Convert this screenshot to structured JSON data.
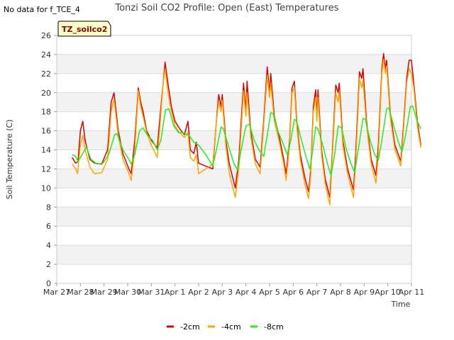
{
  "chart_data": {
    "type": "line",
    "title": "Tonzi Soil CO2 Profile: Open (East) Temperatures",
    "no_data_note": "No data for f_TCE_4",
    "badge": "TZ_soilco2",
    "xlabel": "Time",
    "ylabel": "Soil Temperature (C)",
    "xlim": [
      0,
      15
    ],
    "ylim": [
      0,
      26
    ],
    "x_ticks": [
      0,
      1,
      2,
      3,
      4,
      5,
      6,
      7,
      8,
      9,
      10,
      11,
      12,
      13,
      14,
      15
    ],
    "x_tick_labels": [
      "Mar 27",
      "Mar 28",
      "Mar 29",
      "Mar 30",
      "Mar 31",
      "Apr 1",
      "Apr 2",
      "Apr 3",
      "Apr 4",
      "Apr 5",
      "Apr 6",
      "Apr 7",
      "Apr 8",
      "Apr 9",
      "Apr 10",
      "Apr 11"
    ],
    "y_ticks": [
      0,
      2,
      4,
      6,
      8,
      10,
      12,
      14,
      16,
      18,
      20,
      22,
      24,
      26
    ],
    "grid": "horizontal bands",
    "legend_position": "bottom-center",
    "series": [
      {
        "name": "-2cm",
        "color": "#dd0000",
        "points": [
          [
            0.65,
            13.2
          ],
          [
            0.8,
            12.6
          ],
          [
            0.9,
            12.8
          ],
          [
            1.0,
            16.0
          ],
          [
            1.1,
            17.0
          ],
          [
            1.2,
            15.0
          ],
          [
            1.4,
            13.0
          ],
          [
            1.6,
            12.6
          ],
          [
            1.9,
            12.5
          ],
          [
            2.15,
            14.0
          ],
          [
            2.3,
            19.0
          ],
          [
            2.42,
            20.0
          ],
          [
            2.6,
            16.0
          ],
          [
            2.8,
            13.6
          ],
          [
            3.05,
            12.0
          ],
          [
            3.15,
            11.5
          ],
          [
            3.3,
            15.0
          ],
          [
            3.45,
            20.5
          ],
          [
            3.55,
            19.0
          ],
          [
            3.65,
            18.0
          ],
          [
            3.8,
            16.0
          ],
          [
            4.0,
            15.0
          ],
          [
            4.25,
            14.2
          ],
          [
            4.35,
            17.0
          ],
          [
            4.5,
            21.0
          ],
          [
            4.58,
            23.2
          ],
          [
            4.7,
            21.0
          ],
          [
            4.85,
            18.5
          ],
          [
            5.0,
            17.0
          ],
          [
            5.2,
            16.2
          ],
          [
            5.4,
            15.6
          ],
          [
            5.55,
            17.0
          ],
          [
            5.65,
            14.0
          ],
          [
            5.8,
            13.6
          ],
          [
            5.9,
            14.8
          ],
          [
            6.0,
            12.6
          ],
          [
            6.3,
            12.3
          ],
          [
            6.6,
            12.0
          ],
          [
            6.75,
            17.0
          ],
          [
            6.85,
            19.8
          ],
          [
            6.95,
            18.5
          ],
          [
            7.0,
            19.8
          ],
          [
            7.15,
            15.0
          ],
          [
            7.3,
            12.5
          ],
          [
            7.55,
            10.0
          ],
          [
            7.7,
            13.0
          ],
          [
            7.9,
            21.0
          ],
          [
            8.0,
            18.0
          ],
          [
            8.05,
            21.2
          ],
          [
            8.2,
            16.0
          ],
          [
            8.4,
            13.0
          ],
          [
            8.6,
            12.2
          ],
          [
            8.75,
            17.0
          ],
          [
            8.9,
            22.7
          ],
          [
            9.0,
            20.0
          ],
          [
            9.05,
            22.0
          ],
          [
            9.2,
            17.5
          ],
          [
            9.4,
            15.5
          ],
          [
            9.6,
            13.0
          ],
          [
            9.7,
            11.5
          ],
          [
            9.85,
            15.0
          ],
          [
            9.95,
            20.5
          ],
          [
            10.05,
            21.2
          ],
          [
            10.15,
            17.0
          ],
          [
            10.3,
            13.5
          ],
          [
            10.5,
            11.0
          ],
          [
            10.65,
            9.6
          ],
          [
            10.75,
            12.0
          ],
          [
            10.85,
            18.5
          ],
          [
            10.95,
            20.3
          ],
          [
            11.0,
            17.5
          ],
          [
            11.05,
            20.3
          ],
          [
            11.2,
            14.0
          ],
          [
            11.35,
            11.0
          ],
          [
            11.55,
            9.0
          ],
          [
            11.65,
            13.5
          ],
          [
            11.8,
            20.8
          ],
          [
            11.9,
            20.0
          ],
          [
            11.95,
            21.0
          ],
          [
            12.1,
            15.0
          ],
          [
            12.3,
            12.0
          ],
          [
            12.55,
            9.8
          ],
          [
            12.65,
            14.0
          ],
          [
            12.8,
            22.2
          ],
          [
            12.9,
            21.5
          ],
          [
            12.95,
            22.5
          ],
          [
            13.1,
            17.0
          ],
          [
            13.3,
            13.0
          ],
          [
            13.5,
            11.3
          ],
          [
            13.6,
            14.5
          ],
          [
            13.75,
            22.5
          ],
          [
            13.82,
            24.1
          ],
          [
            13.9,
            22.5
          ],
          [
            13.95,
            23.4
          ],
          [
            14.1,
            18.0
          ],
          [
            14.3,
            14.5
          ],
          [
            14.55,
            12.8
          ],
          [
            14.65,
            16.0
          ],
          [
            14.8,
            21.5
          ],
          [
            14.9,
            23.4
          ],
          [
            15.0,
            23.4
          ],
          [
            15.1,
            21.0
          ],
          [
            15.25,
            17.0
          ],
          [
            15.4,
            14.5
          ]
        ]
      },
      {
        "name": "-4cm",
        "color": "#ffa500",
        "points": [
          [
            0.65,
            12.5
          ],
          [
            0.8,
            12.0
          ],
          [
            0.88,
            11.5
          ],
          [
            1.0,
            14.5
          ],
          [
            1.1,
            15.5
          ],
          [
            1.2,
            14.0
          ],
          [
            1.4,
            12.2
          ],
          [
            1.6,
            11.5
          ],
          [
            1.9,
            11.6
          ],
          [
            2.15,
            13.0
          ],
          [
            2.3,
            18.0
          ],
          [
            2.42,
            19.3
          ],
          [
            2.6,
            15.5
          ],
          [
            2.8,
            13.0
          ],
          [
            3.05,
            11.5
          ],
          [
            3.15,
            10.8
          ],
          [
            3.3,
            14.0
          ],
          [
            3.45,
            20.2
          ],
          [
            3.55,
            18.5
          ],
          [
            3.65,
            17.5
          ],
          [
            3.8,
            15.8
          ],
          [
            4.0,
            14.5
          ],
          [
            4.25,
            13.2
          ],
          [
            4.35,
            16.0
          ],
          [
            4.5,
            21.0
          ],
          [
            4.58,
            22.5
          ],
          [
            4.7,
            20.0
          ],
          [
            4.85,
            18.0
          ],
          [
            5.0,
            16.5
          ],
          [
            5.2,
            15.8
          ],
          [
            5.4,
            15.3
          ],
          [
            5.55,
            15.8
          ],
          [
            5.65,
            13.2
          ],
          [
            5.8,
            12.8
          ],
          [
            5.9,
            13.5
          ],
          [
            6.0,
            11.5
          ],
          [
            6.3,
            12.0
          ],
          [
            6.6,
            12.5
          ],
          [
            6.75,
            17.0
          ],
          [
            6.85,
            19.0
          ],
          [
            6.95,
            18.0
          ],
          [
            7.0,
            19.2
          ],
          [
            7.15,
            14.5
          ],
          [
            7.3,
            11.5
          ],
          [
            7.55,
            9.0
          ],
          [
            7.7,
            12.0
          ],
          [
            7.9,
            20.2
          ],
          [
            8.0,
            17.5
          ],
          [
            8.05,
            20.0
          ],
          [
            8.2,
            15.5
          ],
          [
            8.4,
            12.5
          ],
          [
            8.6,
            11.5
          ],
          [
            8.75,
            16.5
          ],
          [
            8.9,
            21.8
          ],
          [
            9.0,
            19.5
          ],
          [
            9.05,
            21.0
          ],
          [
            9.2,
            17.0
          ],
          [
            9.4,
            15.0
          ],
          [
            9.6,
            12.5
          ],
          [
            9.7,
            10.8
          ],
          [
            9.85,
            14.5
          ],
          [
            9.95,
            20.0
          ],
          [
            10.05,
            20.5
          ],
          [
            10.15,
            16.5
          ],
          [
            10.3,
            13.0
          ],
          [
            10.5,
            10.3
          ],
          [
            10.65,
            8.9
          ],
          [
            10.75,
            11.5
          ],
          [
            10.85,
            18.0
          ],
          [
            10.95,
            19.5
          ],
          [
            11.0,
            17.0
          ],
          [
            11.05,
            19.5
          ],
          [
            11.2,
            13.5
          ],
          [
            11.35,
            10.5
          ],
          [
            11.55,
            8.2
          ],
          [
            11.65,
            13.0
          ],
          [
            11.8,
            20.0
          ],
          [
            11.9,
            19.0
          ],
          [
            11.95,
            20.2
          ],
          [
            12.1,
            14.5
          ],
          [
            12.3,
            11.5
          ],
          [
            12.55,
            9.0
          ],
          [
            12.65,
            13.0
          ],
          [
            12.8,
            21.5
          ],
          [
            12.9,
            20.5
          ],
          [
            12.95,
            21.3
          ],
          [
            13.1,
            16.5
          ],
          [
            13.3,
            12.5
          ],
          [
            13.5,
            10.5
          ],
          [
            13.6,
            13.5
          ],
          [
            13.75,
            22.0
          ],
          [
            13.82,
            23.5
          ],
          [
            13.9,
            22.0
          ],
          [
            13.95,
            22.8
          ],
          [
            14.1,
            17.5
          ],
          [
            14.3,
            14.0
          ],
          [
            14.55,
            12.3
          ],
          [
            14.65,
            15.5
          ],
          [
            14.8,
            21.0
          ],
          [
            14.9,
            22.5
          ],
          [
            15.0,
            22.0
          ],
          [
            15.1,
            20.5
          ],
          [
            15.25,
            16.5
          ],
          [
            15.4,
            14.2
          ]
        ]
      },
      {
        "name": "-8cm",
        "color": "#22ee22",
        "points": [
          [
            0.65,
            13.5
          ],
          [
            0.8,
            13.3
          ],
          [
            0.9,
            12.8
          ],
          [
            1.05,
            13.4
          ],
          [
            1.25,
            14.3
          ],
          [
            1.45,
            13.0
          ],
          [
            1.7,
            12.5
          ],
          [
            1.95,
            12.6
          ],
          [
            2.2,
            13.5
          ],
          [
            2.45,
            15.6
          ],
          [
            2.55,
            15.7
          ],
          [
            2.8,
            14.0
          ],
          [
            3.05,
            13.0
          ],
          [
            3.15,
            12.5
          ],
          [
            3.3,
            13.5
          ],
          [
            3.5,
            16.0
          ],
          [
            3.65,
            16.3
          ],
          [
            3.85,
            15.5
          ],
          [
            4.05,
            15.0
          ],
          [
            4.25,
            14.0
          ],
          [
            4.4,
            15.0
          ],
          [
            4.6,
            18.2
          ],
          [
            4.75,
            18.3
          ],
          [
            4.95,
            16.5
          ],
          [
            5.15,
            15.8
          ],
          [
            5.35,
            15.8
          ],
          [
            5.6,
            15.5
          ],
          [
            5.8,
            14.8
          ],
          [
            6.0,
            14.5
          ],
          [
            6.3,
            13.5
          ],
          [
            6.6,
            12.3
          ],
          [
            6.75,
            14.0
          ],
          [
            6.95,
            16.4
          ],
          [
            7.05,
            16.2
          ],
          [
            7.25,
            14.5
          ],
          [
            7.5,
            12.5
          ],
          [
            7.65,
            11.9
          ],
          [
            7.8,
            14.0
          ],
          [
            8.0,
            16.5
          ],
          [
            8.15,
            16.7
          ],
          [
            8.35,
            15.0
          ],
          [
            8.55,
            14.0
          ],
          [
            8.75,
            13.3
          ],
          [
            8.9,
            15.5
          ],
          [
            9.05,
            17.9
          ],
          [
            9.15,
            17.8
          ],
          [
            9.35,
            16.0
          ],
          [
            9.55,
            14.8
          ],
          [
            9.75,
            13.5
          ],
          [
            9.9,
            15.0
          ],
          [
            10.05,
            17.2
          ],
          [
            10.15,
            17.0
          ],
          [
            10.35,
            15.0
          ],
          [
            10.55,
            13.2
          ],
          [
            10.7,
            12.0
          ],
          [
            10.8,
            13.5
          ],
          [
            10.95,
            16.4
          ],
          [
            11.05,
            16.2
          ],
          [
            11.25,
            14.5
          ],
          [
            11.45,
            12.5
          ],
          [
            11.6,
            11.3
          ],
          [
            11.75,
            13.5
          ],
          [
            11.9,
            16.5
          ],
          [
            12.05,
            16.3
          ],
          [
            12.25,
            14.0
          ],
          [
            12.45,
            12.5
          ],
          [
            12.6,
            11.6
          ],
          [
            12.75,
            14.0
          ],
          [
            12.95,
            17.3
          ],
          [
            13.05,
            17.2
          ],
          [
            13.25,
            15.0
          ],
          [
            13.45,
            13.5
          ],
          [
            13.6,
            12.9
          ],
          [
            13.75,
            15.0
          ],
          [
            13.95,
            18.3
          ],
          [
            14.05,
            18.4
          ],
          [
            14.25,
            16.5
          ],
          [
            14.45,
            14.8
          ],
          [
            14.6,
            13.8
          ],
          [
            14.75,
            15.5
          ],
          [
            14.95,
            18.5
          ],
          [
            15.05,
            18.6
          ],
          [
            15.25,
            17.0
          ],
          [
            15.4,
            16.2
          ]
        ]
      }
    ]
  }
}
